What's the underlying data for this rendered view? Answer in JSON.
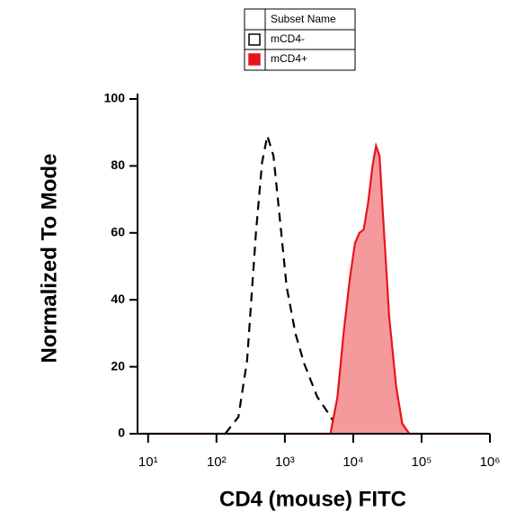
{
  "chart_data": {
    "type": "histogram-overlay",
    "x_label": "CD4 (mouse) FITC",
    "y_label": "Normalized To Mode",
    "legend_title": "Subset Name",
    "x_scale": "log",
    "xlim": [
      7,
      1000000
    ],
    "xticks": [
      {
        "value": 10,
        "label": "10¹"
      },
      {
        "value": 100,
        "label": "10²"
      },
      {
        "value": 1000,
        "label": "10³"
      },
      {
        "value": 10000,
        "label": "10⁴"
      },
      {
        "value": 100000,
        "label": "10⁵"
      },
      {
        "value": 1000000,
        "label": "10⁶"
      }
    ],
    "ylim": [
      0,
      100
    ],
    "yticks": [
      0,
      20,
      40,
      60,
      80,
      100
    ],
    "series": [
      {
        "name": "mCD4-",
        "color": "#000000",
        "dashed": true,
        "filled": false,
        "x": [
          134,
          209,
          281,
          378,
          464,
          555,
          681,
          838,
          1060,
          1426,
          1914,
          2979,
          4375,
          5380
        ],
        "values": [
          0,
          5,
          22,
          60,
          81,
          89,
          83,
          65,
          44,
          30,
          21,
          11,
          6,
          3
        ]
      },
      {
        "name": "mCD4+",
        "color": "#e8141c",
        "fill_color": "#f59a9c",
        "dashed": false,
        "filled": true,
        "x": [
          8,
          4645,
          5878,
          7220,
          8890,
          10610,
          12310,
          14260,
          16530,
          19150,
          21550,
          24270,
          27290,
          33560,
          42500,
          52260,
          66180,
          900000
        ],
        "values": [
          0,
          0,
          11,
          30,
          46,
          57,
          60,
          61,
          69,
          80,
          86,
          83,
          65,
          35,
          14,
          3,
          0,
          0
        ]
      }
    ]
  }
}
